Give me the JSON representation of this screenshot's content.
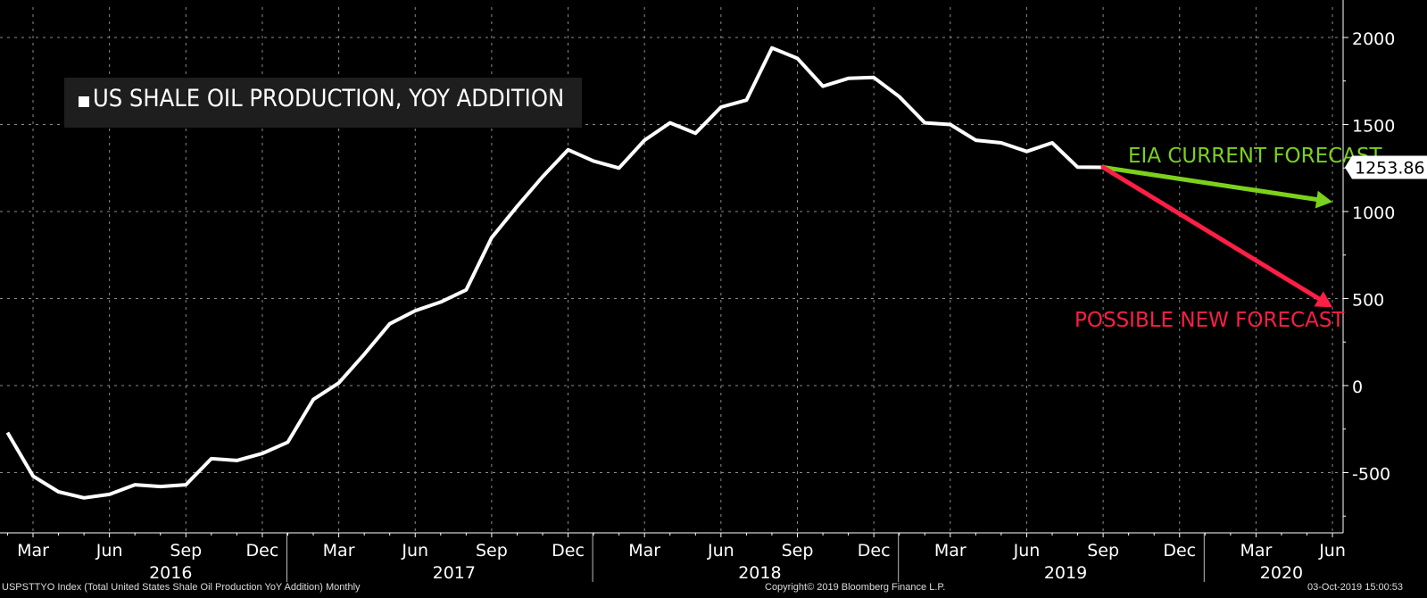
{
  "chart_data": {
    "type": "line",
    "title": "US SHALE OIL PRODUCTION, YOY ADDITION",
    "ylim": [
      -850,
      2200
    ],
    "y_ticks": [
      -500,
      0,
      500,
      1000,
      1500,
      2000
    ],
    "grid": true,
    "legend_placement": "top-left",
    "x_month_labels": [
      "Mar",
      "Jun",
      "Sep",
      "Dec",
      "Mar",
      "Jun",
      "Sep",
      "Dec",
      "Mar",
      "Jun",
      "Sep",
      "Dec",
      "Mar",
      "Jun",
      "Sep",
      "Dec",
      "Mar",
      "Jun"
    ],
    "x_year_labels": [
      "2016",
      "2017",
      "2018",
      "2019",
      "2020"
    ],
    "series": [
      {
        "name": "US SHALE OIL PRODUCTION, YOY ADDITION",
        "color": "#ffffff",
        "x": [
          "2016-02",
          "2016-03",
          "2016-04",
          "2016-05",
          "2016-06",
          "2016-07",
          "2016-08",
          "2016-09",
          "2016-10",
          "2016-11",
          "2016-12",
          "2017-01",
          "2017-02",
          "2017-03",
          "2017-04",
          "2017-05",
          "2017-06",
          "2017-07",
          "2017-08",
          "2017-09",
          "2017-10",
          "2017-11",
          "2017-12",
          "2018-01",
          "2018-02",
          "2018-03",
          "2018-04",
          "2018-05",
          "2018-06",
          "2018-07",
          "2018-08",
          "2018-09",
          "2018-10",
          "2018-11",
          "2018-12",
          "2019-01",
          "2019-02",
          "2019-03",
          "2019-04",
          "2019-05",
          "2019-06",
          "2019-07",
          "2019-08",
          "2019-09"
        ],
        "values": [
          -270,
          -520,
          -610,
          -645,
          -625,
          -570,
          -580,
          -570,
          -420,
          -430,
          -390,
          -325,
          -80,
          15,
          180,
          355,
          430,
          480,
          550,
          850,
          1030,
          1200,
          1355,
          1290,
          1250,
          1410,
          1510,
          1450,
          1600,
          1640,
          1940,
          1880,
          1720,
          1765,
          1770,
          1660,
          1510,
          1500,
          1410,
          1395,
          1345,
          1395,
          1255,
          1254
        ]
      },
      {
        "name": "EIA CURRENT FORECAST",
        "color": "#7cd11c",
        "x": [
          "2019-09",
          "2020-06"
        ],
        "values": [
          1254,
          1055
        ]
      },
      {
        "name": "POSSIBLE NEW FORECAST",
        "color": "#ff1e46",
        "x": [
          "2019-09",
          "2020-06"
        ],
        "values": [
          1254,
          450
        ]
      }
    ],
    "last_value_label": "1253.86"
  },
  "footer": {
    "left": "USPSTTYO Index (Total United States Shale Oil Production YoY Addition)  Monthly",
    "center": "Copyright© 2019 Bloomberg Finance L.P.",
    "right": "03-Oct-2019 15:00:53"
  }
}
